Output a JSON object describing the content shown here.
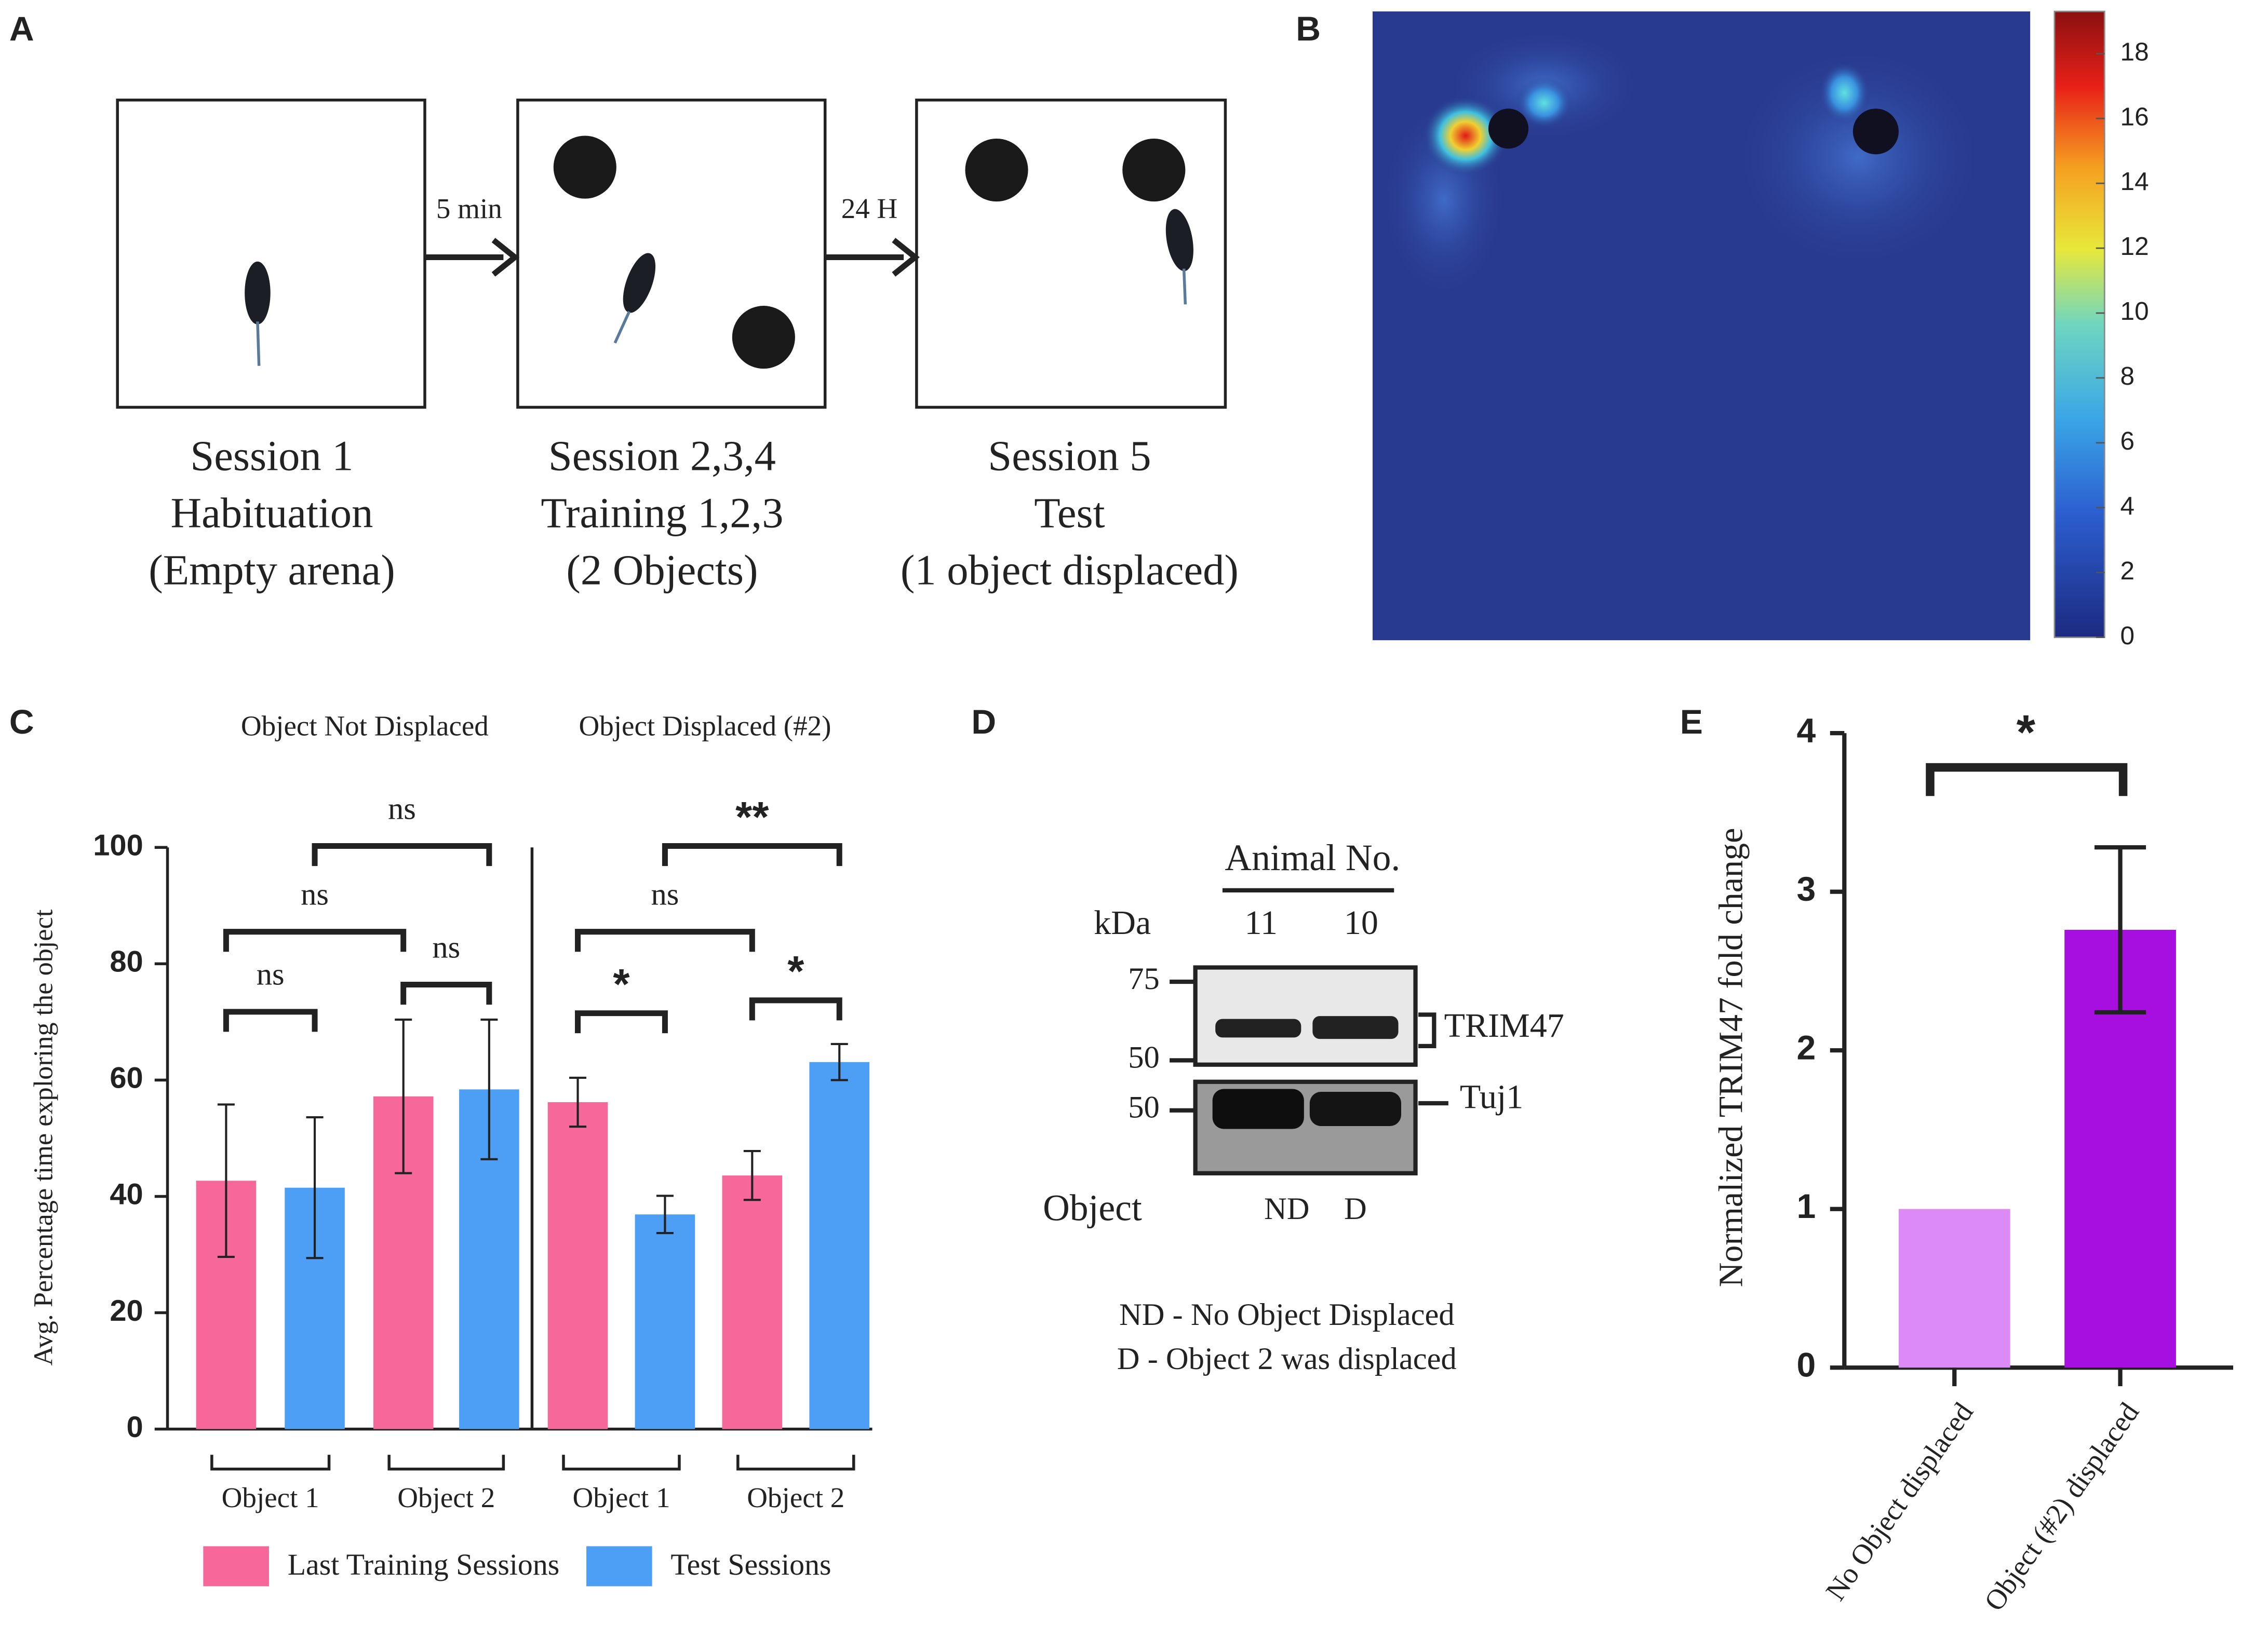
{
  "panel_labels": [
    "A",
    "B",
    "C",
    "D",
    "E"
  ],
  "panel_a": {
    "sessions": [
      {
        "lines": [
          "Session 1",
          "Habituation",
          "(Empty arena)"
        ]
      },
      {
        "lines": [
          "Session 2,3,4",
          "Training 1,2,3",
          "(2 Objects)"
        ]
      },
      {
        "lines": [
          "Session 5",
          "Test",
          "(1 object displaced)"
        ]
      }
    ],
    "intervals": [
      "5 min",
      "24 H"
    ]
  },
  "panel_d": {
    "header": "Animal No.",
    "kda": "kDa",
    "animals": [
      "11",
      "10"
    ],
    "markers": [
      "75",
      "50",
      "50"
    ],
    "proteins": [
      "TRIM47",
      "Tuj1"
    ],
    "object_label": "Object",
    "conditions": [
      "ND",
      "D"
    ],
    "legend": [
      "ND - No Object Displaced",
      "D - Object 2 was displaced"
    ]
  },
  "chart_data": [
    {
      "type": "heatmap",
      "zlim": [
        0,
        19.3
      ],
      "zticks": [
        0,
        2,
        4,
        6,
        8,
        10,
        12,
        14,
        16,
        18
      ]
    },
    {
      "type": "bar",
      "group_titles": [
        "Object Not Displaced",
        "Object Displaced (#2)"
      ],
      "categories": [
        "Object 1",
        "Object 2",
        "Object 1",
        "Object 2"
      ],
      "series": [
        {
          "name": "Last Training Sessions",
          "color": "#f7689a",
          "values": [
            42.7,
            57.2,
            56.2,
            43.6
          ],
          "errors": [
            13.1,
            13.2,
            4.2,
            4.2
          ]
        },
        {
          "name": "Test Sessions",
          "color": "#4d9ff5",
          "values": [
            41.5,
            58.4,
            36.9,
            63.1
          ],
          "errors": [
            12.1,
            12.0,
            3.2,
            3.1
          ]
        }
      ],
      "ylabel": "Avg. Percentage time exploring the object",
      "ylim": [
        0,
        100
      ],
      "yticks": [
        0,
        20,
        40,
        60,
        80,
        100
      ],
      "annotations": [
        "ns",
        "ns",
        "ns",
        "ns",
        "*",
        "ns",
        "*",
        "**"
      ]
    },
    {
      "type": "bar",
      "categories": [
        "No Object displaced",
        "Object (#2) displaced"
      ],
      "values": [
        1,
        2.76
      ],
      "errors": [
        null,
        0.52
      ],
      "colors": [
        "#dc8af5",
        "#a70ee0"
      ],
      "ylabel": "Normalized TRIM47 fold change",
      "ylim": [
        0,
        4
      ],
      "yticks": [
        0,
        1,
        2,
        3,
        4
      ],
      "annotations": [
        "*"
      ]
    }
  ]
}
